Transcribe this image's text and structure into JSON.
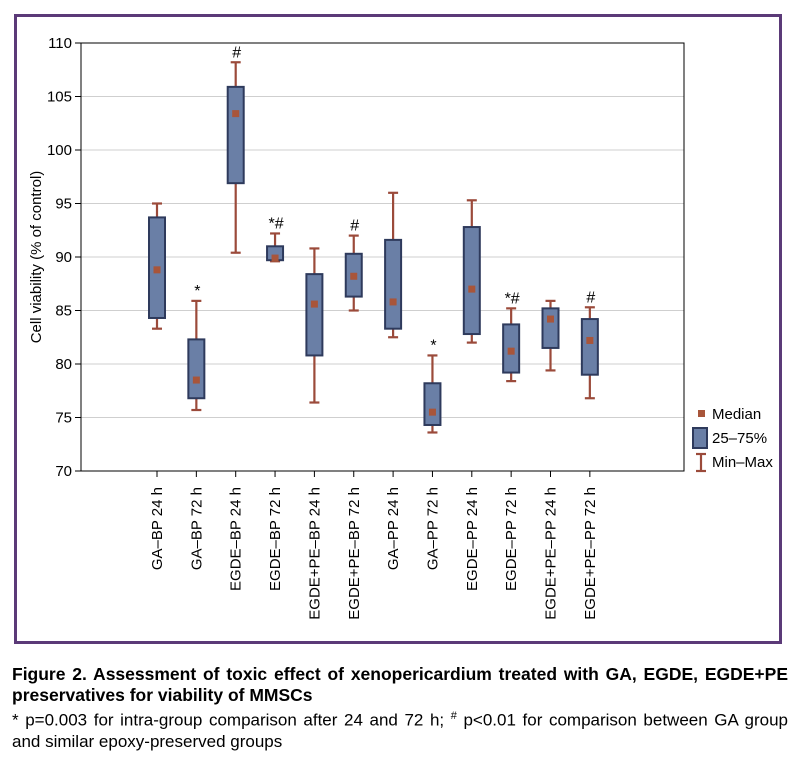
{
  "chart_data": {
    "type": "boxplot",
    "ylabel": "Cell viability (% of control)",
    "ylim": [
      70,
      110
    ],
    "yticks": [
      70,
      75,
      80,
      85,
      90,
      95,
      100,
      105,
      110
    ],
    "grid": true,
    "legend_position": "bottom-right",
    "legend": {
      "median": "Median",
      "box": "25–75%",
      "whisker": "Min–Max"
    },
    "colors": {
      "box_fill": "#6a7fa6",
      "box_stroke": "#2e3a5c",
      "whisker": "#9b4a3a",
      "median": "#a8553a",
      "frame": "#5b3a78"
    },
    "categories": [
      "GA–BP 24 h",
      "GA–BP 72 h",
      "EGDE–BP 24 h",
      "EGDE–BP 72 h",
      "EGDE+PE–BP 24 h",
      "EGDE+PE–BP 72 h",
      "GA–PP 24 h",
      "GA–PP 72 h",
      "EGDE–PP 24 h",
      "EGDE–PP 72 h",
      "EGDE+PE–PP 24 h",
      "EGDE+PE–PP 72 h"
    ],
    "min": [
      83.3,
      75.7,
      90.4,
      89.6,
      76.4,
      85.0,
      82.5,
      73.6,
      82.0,
      78.4,
      79.4,
      76.8
    ],
    "q1": [
      84.3,
      76.8,
      96.9,
      89.7,
      80.8,
      86.3,
      83.3,
      74.3,
      82.8,
      79.2,
      81.5,
      79.0
    ],
    "median": [
      88.8,
      78.5,
      103.4,
      89.9,
      85.6,
      88.2,
      85.8,
      75.5,
      87.0,
      81.2,
      84.2,
      82.2
    ],
    "q3": [
      93.7,
      82.3,
      105.9,
      91.0,
      88.4,
      90.3,
      91.6,
      78.2,
      92.8,
      83.7,
      85.2,
      84.2
    ],
    "max": [
      95.0,
      85.9,
      108.2,
      92.2,
      90.8,
      92.0,
      96.0,
      80.8,
      95.3,
      85.2,
      85.9,
      85.3
    ],
    "annotations": [
      "",
      "*",
      "#",
      "*#",
      "",
      "#",
      "",
      "*",
      "",
      "*#",
      "",
      "#"
    ]
  },
  "caption": {
    "title": "Figure 2. Assessment of toxic effect of xenopericardium treated with GA, EGDE, EGDE+PE preservatives for viability of MMSCs",
    "note_star": "* p=0.003 for intra-group comparison after 24 and 72 h;",
    "note_hash_mark": "#",
    "note_hash": "p<0.01 for comparison between GA group and similar epoxy-preserved groups"
  }
}
